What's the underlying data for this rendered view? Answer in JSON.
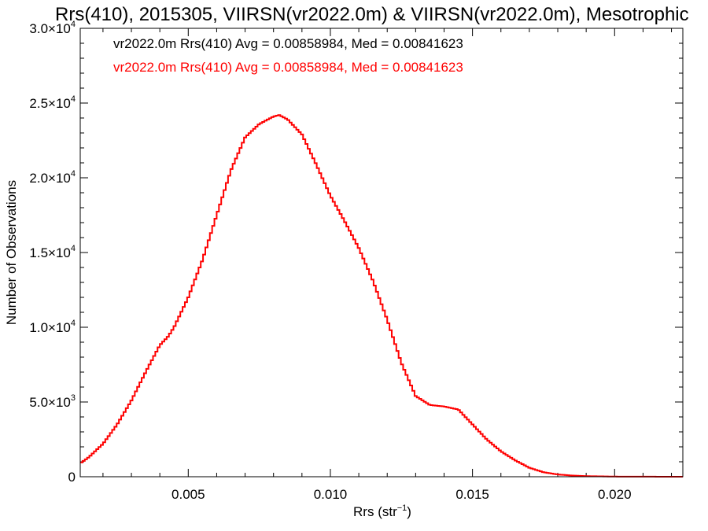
{
  "chart_data": {
    "type": "line",
    "style": "step",
    "title": "Rrs(410), 2015305, VIIRSN(vr2022.0m) & VIIRSN(vr2022.0m), Mesotrophic",
    "xlabel": "Rrs (str",
    "xlabel_sup": "−1",
    "xlabel_close": ")",
    "ylabel": "Number of Observations",
    "xlim": [
      0.0012,
      0.0224
    ],
    "ylim": [
      0,
      30000
    ],
    "grid": false,
    "x_ticks": [
      {
        "value": 0.005,
        "label": "0.005"
      },
      {
        "value": 0.01,
        "label": "0.010"
      },
      {
        "value": 0.015,
        "label": "0.015"
      },
      {
        "value": 0.02,
        "label": "0.020"
      }
    ],
    "y_ticks": [
      {
        "value": 0,
        "mant": "0",
        "exp": ""
      },
      {
        "value": 5000,
        "mant": "5.0×10",
        "exp": "3"
      },
      {
        "value": 10000,
        "mant": "1.0×10",
        "exp": "4"
      },
      {
        "value": 15000,
        "mant": "1.5×10",
        "exp": "4"
      },
      {
        "value": 20000,
        "mant": "2.0×10",
        "exp": "4"
      },
      {
        "value": 25000,
        "mant": "2.5×10",
        "exp": "4"
      },
      {
        "value": 30000,
        "mant": "3.0×10",
        "exp": "4"
      }
    ],
    "legend": [
      {
        "text": "vr2022.0m Rrs(410) Avg = 0.00858984, Med = 0.00841623",
        "color": "#000000"
      },
      {
        "text": "vr2022.0m Rrs(410) Avg = 0.00858984, Med = 0.00841623",
        "color": "#ff0000"
      }
    ],
    "legend_position": "top-left",
    "series": [
      {
        "color": "#ff0000",
        "x": [
          0.0012,
          0.0015,
          0.002,
          0.0025,
          0.003,
          0.0035,
          0.004,
          0.0043,
          0.0045,
          0.005,
          0.0055,
          0.006,
          0.0065,
          0.007,
          0.0075,
          0.008,
          0.0082,
          0.0085,
          0.009,
          0.0095,
          0.01,
          0.0105,
          0.011,
          0.0115,
          0.012,
          0.0125,
          0.013,
          0.0135,
          0.014,
          0.0145,
          0.015,
          0.0155,
          0.016,
          0.0165,
          0.017,
          0.0175,
          0.018,
          0.0185,
          0.019,
          0.02,
          0.021,
          0.0224
        ],
        "values": [
          900,
          1300,
          2200,
          3500,
          5100,
          7000,
          8800,
          9400,
          10000,
          12000,
          14500,
          17500,
          20500,
          22700,
          23600,
          24100,
          24200,
          23900,
          22900,
          20900,
          18800,
          17100,
          15300,
          13100,
          10500,
          7600,
          5400,
          4800,
          4700,
          4500,
          3500,
          2500,
          1700,
          1100,
          600,
          300,
          150,
          80,
          40,
          10,
          5,
          0
        ]
      }
    ]
  }
}
